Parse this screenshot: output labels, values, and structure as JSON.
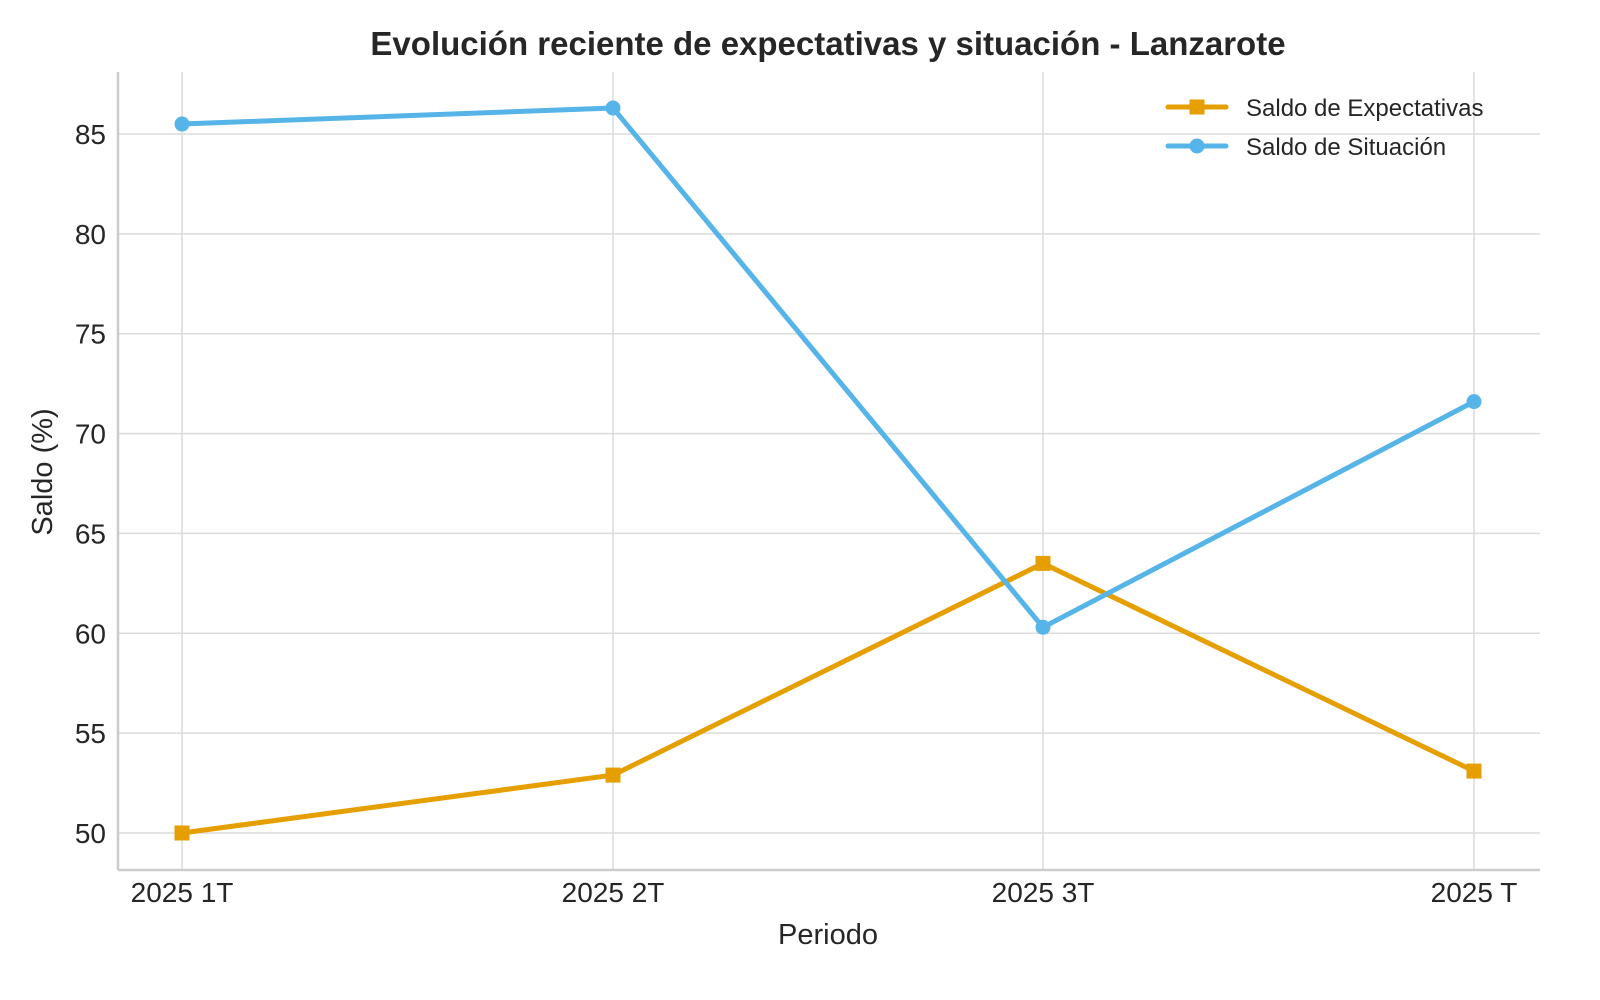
{
  "chart_data": {
    "type": "line",
    "title": "Evolución reciente de expectativas y situación - Lanzarote",
    "xlabel": "Periodo",
    "ylabel": "Saldo (%)",
    "categories": [
      "2025 1T",
      "2025 2T",
      "2025 3T",
      "2025 T"
    ],
    "ylim": [
      48.2,
      88.2
    ],
    "yticks": [
      50,
      55,
      60,
      65,
      70,
      75,
      80,
      85
    ],
    "grid": true,
    "legend_position": "top-right",
    "series": [
      {
        "name": "Saldo de Expectativas",
        "color": "#E69F00",
        "marker": "square",
        "values": [
          50.0,
          52.9,
          63.5,
          53.1
        ]
      },
      {
        "name": "Saldo de Situación",
        "color": "#56B4E9",
        "marker": "circle",
        "values": [
          85.5,
          86.3,
          60.3,
          71.6
        ]
      }
    ]
  }
}
